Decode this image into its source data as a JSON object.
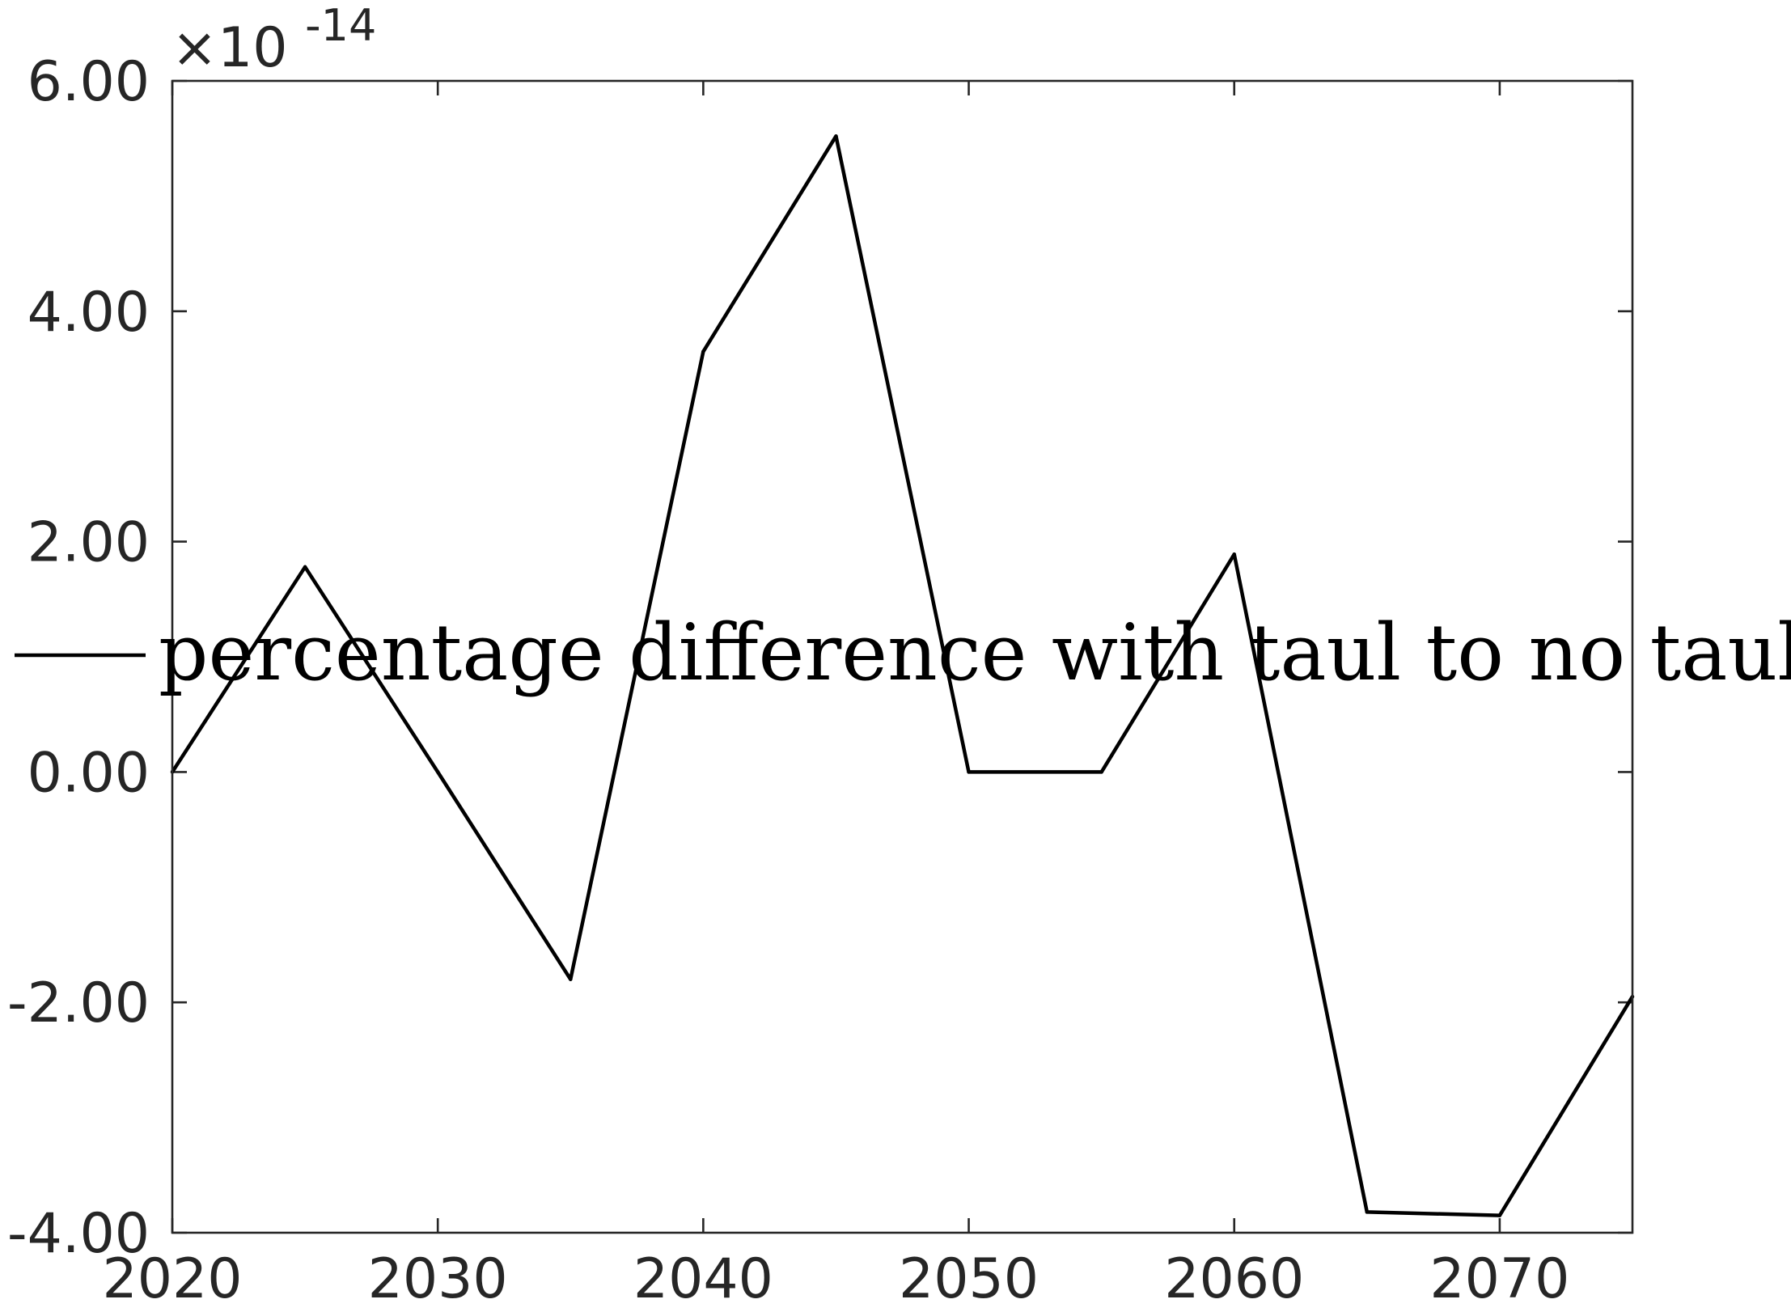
{
  "chart_data": {
    "type": "line",
    "x": [
      2020,
      2025,
      2030,
      2035,
      2040,
      2045,
      2050,
      2055,
      2060,
      2065,
      2070,
      2075
    ],
    "series": [
      {
        "name": "percentage difference with taul to no taul",
        "color": "#000000",
        "values": [
          0.0,
          1.78,
          0.0,
          -1.8,
          3.65,
          5.52,
          0.0,
          0.0,
          1.89,
          -3.82,
          -3.85,
          -1.95
        ]
      }
    ],
    "y_multiplier": {
      "base": "×10",
      "exponent": "-14"
    },
    "xlim": [
      2020,
      2075
    ],
    "ylim": [
      -4,
      6
    ],
    "x_ticks": [
      2020,
      2030,
      2040,
      2050,
      2060,
      2070
    ],
    "x_tick_labels": [
      "2020",
      "2030",
      "2040",
      "2050",
      "2060",
      "2070"
    ],
    "y_ticks": [
      -4,
      -2,
      0,
      2,
      4,
      6
    ],
    "y_tick_labels": [
      "-4.00",
      "-2.00",
      "0.00",
      "2.00",
      "4.00",
      "6.00"
    ],
    "grid": false,
    "legend_position": "center"
  }
}
